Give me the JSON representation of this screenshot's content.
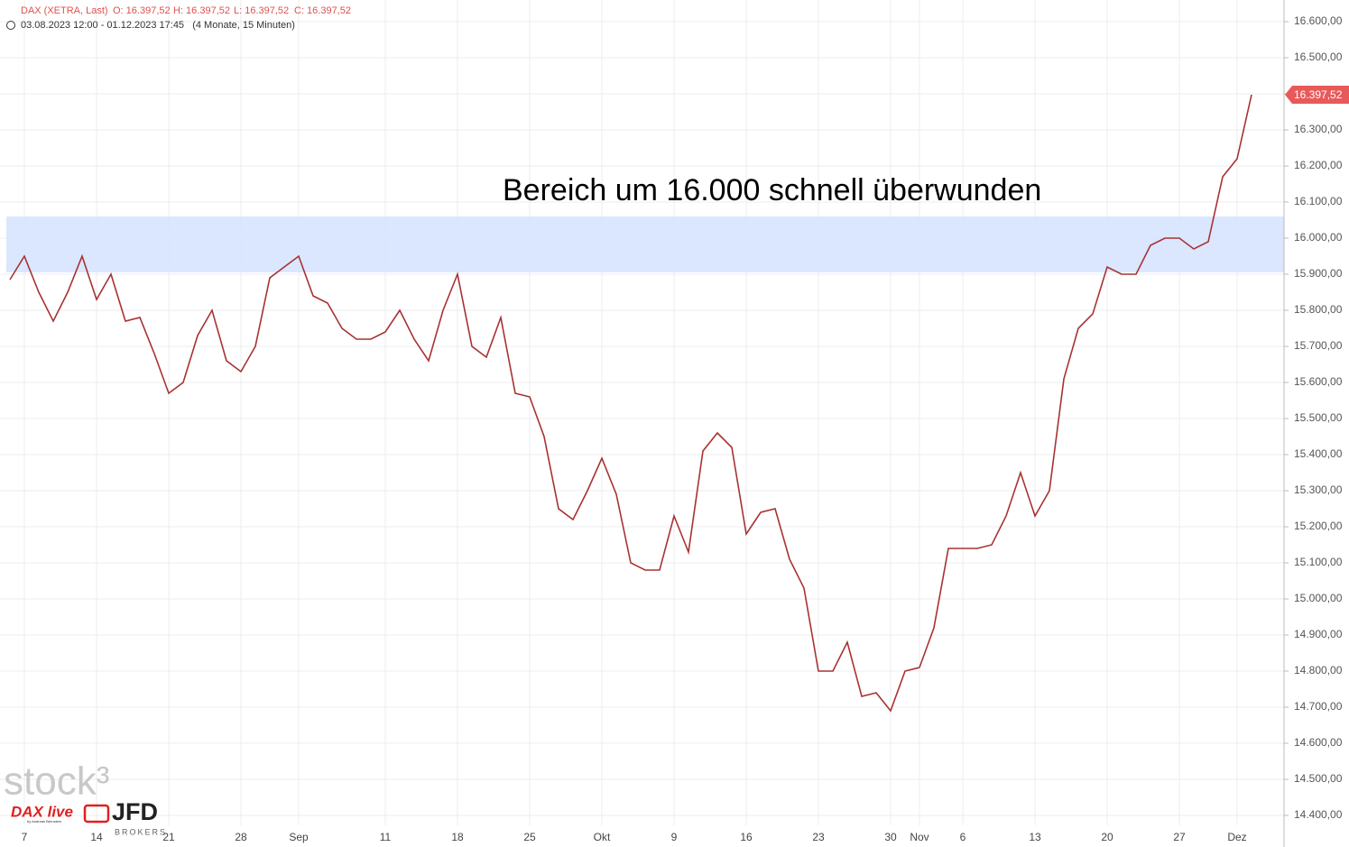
{
  "chart_data": {
    "type": "line",
    "title": "DAX (XETRA, Last)",
    "ohlc": [
      "O: 16.397,52",
      "H: 16.397,52",
      "L: 16.397,52",
      "C: 16.397,52"
    ],
    "subtitle": "03.08.2023 12:00 - 01.12.2023 17:45   (4 Monate, 15 Minuten)",
    "annotation": "Bereich um 16.000 schnell überwunden",
    "zone": [
      15905,
      16060
    ],
    "zone_color": "#d6e4ff",
    "color": "#a83232",
    "grid": true,
    "categories": [
      null,
      null,
      "7",
      null,
      null,
      null,
      null,
      "14",
      null,
      null,
      null,
      null,
      "21",
      null,
      null,
      null,
      null,
      "28",
      null,
      null,
      null,
      "Sep",
      null,
      null,
      null,
      null,
      null,
      "11",
      null,
      null,
      null,
      null,
      "18",
      null,
      null,
      null,
      null,
      "25",
      null,
      null,
      null,
      null,
      "Okt",
      null,
      null,
      null,
      null,
      "9",
      null,
      null,
      null,
      null,
      "16",
      null,
      null,
      null,
      null,
      "23",
      null,
      null,
      null,
      null,
      "30",
      null,
      "Nov",
      null,
      null,
      "6",
      null,
      null,
      null,
      null,
      "13",
      null,
      null,
      null,
      null,
      "20",
      null,
      null,
      null,
      null,
      "27",
      null,
      null,
      null,
      "Dez"
    ],
    "values": [
      15885,
      15950,
      15850,
      15770,
      15850,
      15950,
      15830,
      15900,
      15770,
      15780,
      15680,
      15570,
      15600,
      15730,
      15800,
      15660,
      15630,
      15700,
      15890,
      15920,
      15950,
      15840,
      15820,
      15750,
      15720,
      15720,
      15740,
      15800,
      15720,
      15660,
      15800,
      15900,
      15700,
      15670,
      15780,
      15570,
      15560,
      15450,
      15250,
      15220,
      15300,
      15390,
      15290,
      15100,
      15080,
      15080,
      15230,
      15130,
      15410,
      15460,
      15420,
      15180,
      15240,
      15250,
      15110,
      15030,
      14800,
      14800,
      14880,
      14730,
      14740,
      14690,
      14800,
      14810,
      14920,
      15140,
      15140,
      15140,
      15150,
      15230,
      15350,
      15230,
      15300,
      15610,
      15750,
      15790,
      15920,
      15900,
      15900,
      15980,
      16000,
      16000,
      15970,
      15990,
      16170,
      16220,
      16397.52
    ],
    "last_price": {
      "value": 16397.52,
      "label": "16.397,52"
    },
    "ylim": [
      14372.5,
      16660
    ],
    "yticks": [
      {
        "value": 14400,
        "label": "14.400,00"
      },
      {
        "value": 14500,
        "label": "14.500,00"
      },
      {
        "value": 14600,
        "label": "14.600,00"
      },
      {
        "value": 14700,
        "label": "14.700,00"
      },
      {
        "value": 14800,
        "label": "14.800,00"
      },
      {
        "value": 14900,
        "label": "14.900,00"
      },
      {
        "value": 15000,
        "label": "15.000,00"
      },
      {
        "value": 15100,
        "label": "15.100,00"
      },
      {
        "value": 15200,
        "label": "15.200,00"
      },
      {
        "value": 15300,
        "label": "15.300,00"
      },
      {
        "value": 15400,
        "label": "15.400,00"
      },
      {
        "value": 15500,
        "label": "15.500,00"
      },
      {
        "value": 15600,
        "label": "15.600,00"
      },
      {
        "value": 15700,
        "label": "15.700,00"
      },
      {
        "value": 15800,
        "label": "15.800,00"
      },
      {
        "value": 15900,
        "label": "15.900,00"
      },
      {
        "value": 16000,
        "label": "16.000,00"
      },
      {
        "value": 16100,
        "label": "16.100,00"
      },
      {
        "value": 16200,
        "label": "16.200,00"
      },
      {
        "value": 16300,
        "label": "16.300,00"
      },
      {
        "value": 16400,
        "label": "16.400,00"
      },
      {
        "value": 16500,
        "label": "16.500,00"
      },
      {
        "value": 16600,
        "label": "16.600,00"
      }
    ]
  },
  "branding": {
    "stock3": "stock³",
    "dax_live": "DAX live",
    "by": "by Andreas Bernstein",
    "jfd": "JFD",
    "brokers": "BROKERS"
  }
}
